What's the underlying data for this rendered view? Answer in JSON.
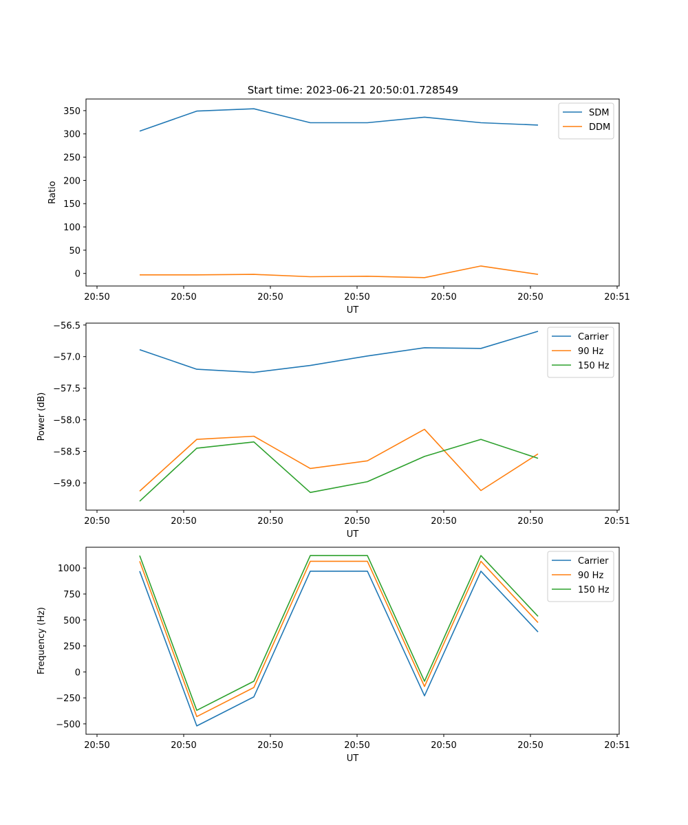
{
  "figure": {
    "title": "Start time: 2023-06-21 20:50:01.728549",
    "colors": {
      "blue": "#1f77b4",
      "orange": "#ff7f0e",
      "green": "#2ca02c"
    }
  },
  "chart_data": [
    {
      "type": "line",
      "xlabel": "UT",
      "ylabel": "Ratio",
      "x_tick_labels": [
        "20:50",
        "20:50",
        "20:50",
        "20:50",
        "20:50",
        "20:50",
        "20:50",
        "20:51"
      ],
      "y_ticks": [
        0,
        50,
        100,
        150,
        200,
        250,
        300,
        350
      ],
      "ylim": [
        -27,
        375
      ],
      "legend": "top-right",
      "grid": false,
      "series": [
        {
          "name": "SDM",
          "color": "#1f77b4",
          "values": [
            306,
            349,
            354,
            324,
            324,
            336,
            324,
            319
          ]
        },
        {
          "name": "DDM",
          "color": "#ff7f0e",
          "values": [
            -3,
            -3,
            -2,
            -7,
            -6,
            -9,
            16,
            -2
          ]
        }
      ]
    },
    {
      "type": "line",
      "xlabel": "UT",
      "ylabel": "Power (dB)",
      "x_tick_labels": [
        "20:50",
        "20:50",
        "20:50",
        "20:50",
        "20:50",
        "20:50",
        "20:50",
        "20:51"
      ],
      "y_ticks": [
        -59.0,
        -58.5,
        -58.0,
        -57.5,
        -57.0,
        -56.5
      ],
      "y_tick_labels": [
        "−59.0",
        "−58.5",
        "−58.0",
        "−57.5",
        "−57.0",
        "−56.5"
      ],
      "ylim": [
        -59.43,
        -56.47
      ],
      "legend": "top-right",
      "grid": false,
      "series": [
        {
          "name": "Carrier",
          "color": "#1f77b4",
          "values": [
            -56.89,
            -57.2,
            -57.25,
            -57.14,
            -56.99,
            -56.86,
            -56.87,
            -56.6
          ]
        },
        {
          "name": "90 Hz",
          "color": "#ff7f0e",
          "values": [
            -59.13,
            -58.31,
            -58.26,
            -58.77,
            -58.65,
            -58.15,
            -59.12,
            -58.54
          ]
        },
        {
          "name": "150 Hz",
          "color": "#2ca02c",
          "values": [
            -59.29,
            -58.45,
            -58.35,
            -59.15,
            -58.98,
            -58.58,
            -58.31,
            -58.61
          ]
        }
      ]
    },
    {
      "type": "line",
      "xlabel": "UT",
      "ylabel": "Frequency (Hz)",
      "x_tick_labels": [
        "20:50",
        "20:50",
        "20:50",
        "20:50",
        "20:50",
        "20:50",
        "20:50",
        "20:51"
      ],
      "y_ticks": [
        -500,
        -250,
        0,
        250,
        500,
        750,
        1000
      ],
      "y_tick_labels": [
        "−500",
        "−250",
        "0",
        "250",
        "500",
        "750",
        "1000"
      ],
      "ylim": [
        -600,
        1200
      ],
      "legend": "top-right",
      "grid": false,
      "series": [
        {
          "name": "Carrier",
          "color": "#1f77b4",
          "values": [
            970,
            -520,
            -240,
            970,
            970,
            -230,
            970,
            385
          ]
        },
        {
          "name": "90 Hz",
          "color": "#ff7f0e",
          "values": [
            1065,
            -430,
            -150,
            1065,
            1065,
            -140,
            1065,
            475
          ]
        },
        {
          "name": "150 Hz",
          "color": "#2ca02c",
          "values": [
            1120,
            -370,
            -90,
            1120,
            1120,
            -90,
            1120,
            535
          ]
        }
      ]
    }
  ]
}
